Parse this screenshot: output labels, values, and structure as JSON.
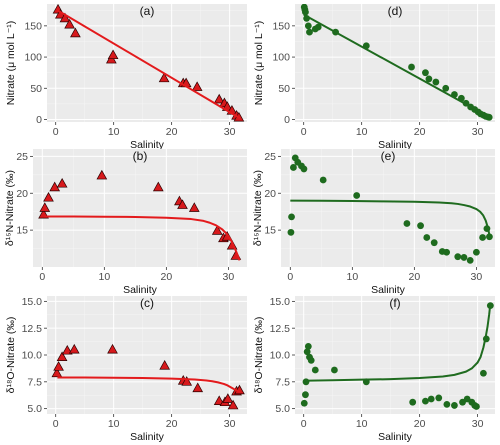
{
  "colors": {
    "red": "#e31a1c",
    "redMarker": "#d7191c",
    "green": "#1f6b1f",
    "greenMarker": "#1e6b1e"
  },
  "chart_data": [
    {
      "id": "a",
      "label": "(a)",
      "type": "scatter",
      "xlabel": "Salinity",
      "ylabel": "Nitrate (μ mol L⁻¹)",
      "xlim": [
        -1.5,
        33
      ],
      "ylim": [
        -4,
        185
      ],
      "xticks": [
        0,
        10,
        20,
        30
      ],
      "yticks": [
        0,
        50,
        100,
        150
      ],
      "xtick_labels": [
        "0",
        "10",
        "20",
        "30"
      ],
      "ytick_labels": [
        "0",
        "50",
        "100",
        "150"
      ],
      "marker": "triangle",
      "color": "red",
      "points": [
        [
          0.4,
          176
        ],
        [
          0.8,
          168
        ],
        [
          1.6,
          162
        ],
        [
          2.4,
          152
        ],
        [
          3.4,
          138
        ],
        [
          9.6,
          96
        ],
        [
          9.9,
          103
        ],
        [
          18.7,
          66
        ],
        [
          22.0,
          58
        ],
        [
          22.5,
          58
        ],
        [
          24.4,
          52
        ],
        [
          28.2,
          32
        ],
        [
          29.1,
          26
        ],
        [
          29.6,
          20
        ],
        [
          30.4,
          14
        ],
        [
          31.2,
          6
        ],
        [
          31.6,
          3
        ]
      ],
      "fit": {
        "kind": "linear",
        "x": [
          0.3,
          31.8
        ],
        "y": [
          175,
          2
        ]
      }
    },
    {
      "id": "d",
      "label": "(d)",
      "type": "scatter",
      "xlabel": "Salinity",
      "ylabel": "Nitrate (μ mol L⁻¹)",
      "xlim": [
        -1.5,
        33
      ],
      "ylim": [
        -4,
        185
      ],
      "xticks": [
        0,
        10,
        20,
        30
      ],
      "yticks": [
        0,
        50,
        100,
        150
      ],
      "xtick_labels": [
        "0",
        "10",
        "20",
        "30"
      ],
      "ytick_labels": [
        "0",
        "50",
        "100",
        "150"
      ],
      "marker": "circle",
      "color": "green",
      "points": [
        [
          0.1,
          180
        ],
        [
          0.2,
          176
        ],
        [
          0.3,
          172
        ],
        [
          0.5,
          162
        ],
        [
          0.8,
          150
        ],
        [
          1.0,
          140
        ],
        [
          2.0,
          145
        ],
        [
          2.5,
          148
        ],
        [
          5.5,
          140
        ],
        [
          10.8,
          118
        ],
        [
          18.6,
          84
        ],
        [
          21.0,
          75
        ],
        [
          21.6,
          65
        ],
        [
          22.8,
          60
        ],
        [
          24.5,
          50
        ],
        [
          26.0,
          40
        ],
        [
          27.2,
          34
        ],
        [
          28.0,
          26
        ],
        [
          28.8,
          20
        ],
        [
          29.5,
          16
        ],
        [
          30.1,
          12
        ],
        [
          30.5,
          9
        ],
        [
          31.0,
          7
        ],
        [
          31.4,
          5
        ],
        [
          31.8,
          4
        ],
        [
          32.0,
          3.5
        ]
      ],
      "fit": {
        "kind": "linear",
        "x": [
          0,
          32
        ],
        "y": [
          168,
          4
        ]
      }
    },
    {
      "id": "b",
      "label": "(b)",
      "type": "scatter",
      "xlabel": "Salinity",
      "ylabel": "δ¹⁵N-Nitrate (‰)",
      "xlim": [
        -1.5,
        33
      ],
      "ylim": [
        10,
        26
      ],
      "xticks": [
        0,
        10,
        20,
        30
      ],
      "yticks": [
        15,
        20,
        25
      ],
      "xtick_labels": [
        "0",
        "10",
        "20",
        "30"
      ],
      "ytick_labels": [
        "15",
        "20",
        "25"
      ],
      "marker": "triangle",
      "color": "red",
      "points": [
        [
          0.2,
          17.1
        ],
        [
          0.4,
          18.0
        ],
        [
          1.0,
          19.4
        ],
        [
          2.0,
          20.8
        ],
        [
          3.2,
          21.3
        ],
        [
          9.6,
          22.4
        ],
        [
          18.7,
          20.8
        ],
        [
          22.1,
          18.9
        ],
        [
          22.6,
          18.4
        ],
        [
          24.5,
          18.0
        ],
        [
          28.2,
          14.9
        ],
        [
          29.2,
          13.9
        ],
        [
          29.8,
          14.1
        ],
        [
          30.6,
          12.9
        ],
        [
          31.2,
          11.5
        ]
      ],
      "fit": {
        "kind": "curve",
        "x": [
          0.3,
          5,
          10,
          15,
          20,
          24,
          26,
          27,
          28,
          29,
          29.5,
          30,
          30.5,
          31,
          31.4,
          31.8
        ],
        "y": [
          16.85,
          16.85,
          16.82,
          16.78,
          16.68,
          16.5,
          16.25,
          16.0,
          15.65,
          15.1,
          14.7,
          14.2,
          13.5,
          12.6,
          11.8,
          10.9
        ]
      }
    },
    {
      "id": "e",
      "label": "(e)",
      "type": "scatter",
      "xlabel": "Salinity",
      "ylabel": "δ¹⁵N-Nitrate (‰)",
      "xlim": [
        -1.5,
        33
      ],
      "ylim": [
        10,
        26
      ],
      "xticks": [
        0,
        10,
        20,
        30
      ],
      "yticks": [
        15,
        20,
        25
      ],
      "xtick_labels": [
        "0",
        "10",
        "20",
        "30"
      ],
      "ytick_labels": [
        "15",
        "20",
        "25"
      ],
      "marker": "circle",
      "color": "green",
      "points": [
        [
          0.1,
          14.7
        ],
        [
          0.2,
          16.8
        ],
        [
          0.5,
          23.5
        ],
        [
          0.8,
          24.8
        ],
        [
          1.2,
          24.2
        ],
        [
          1.8,
          23.7
        ],
        [
          2.2,
          23.3
        ],
        [
          5.3,
          21.8
        ],
        [
          10.7,
          19.7
        ],
        [
          18.8,
          15.9
        ],
        [
          21.0,
          15.6
        ],
        [
          22.0,
          14.0
        ],
        [
          23.2,
          13.3
        ],
        [
          24.5,
          12.1
        ],
        [
          25.2,
          12.0
        ],
        [
          27.0,
          11.4
        ],
        [
          28.0,
          11.3
        ],
        [
          29.0,
          10.9
        ],
        [
          30.0,
          12.0
        ],
        [
          31.0,
          14.0
        ],
        [
          31.7,
          15.2
        ],
        [
          32.1,
          14.1
        ]
      ],
      "fit": {
        "kind": "curve",
        "x": [
          0,
          5,
          10,
          15,
          20,
          24,
          26,
          27,
          28,
          29,
          30,
          30.6,
          31.1,
          31.5,
          31.9,
          32.1
        ],
        "y": [
          19.0,
          18.98,
          18.95,
          18.9,
          18.85,
          18.75,
          18.65,
          18.55,
          18.4,
          18.2,
          17.85,
          17.5,
          17.0,
          16.3,
          15.2,
          14.3
        ]
      }
    },
    {
      "id": "c",
      "label": "(c)",
      "type": "scatter",
      "xlabel": "Salinity",
      "ylabel": "δ¹⁸O-Nitrate (‰)",
      "xlim": [
        -1.5,
        33
      ],
      "ylim": [
        4.5,
        15.5
      ],
      "xticks": [
        0,
        10,
        20,
        30
      ],
      "yticks": [
        5,
        7.5,
        10,
        12.5,
        15
      ],
      "xtick_labels": [
        "0",
        "10",
        "20",
        "30"
      ],
      "ytick_labels": [
        "5.0",
        "7.5",
        "10.0",
        "12.5",
        "15.0"
      ],
      "marker": "triangle",
      "color": "red",
      "points": [
        [
          0.2,
          8.3
        ],
        [
          0.5,
          8.9
        ],
        [
          1.1,
          9.8
        ],
        [
          2.0,
          10.4
        ],
        [
          3.2,
          10.5
        ],
        [
          9.8,
          10.5
        ],
        [
          18.8,
          9.0
        ],
        [
          22.0,
          7.6
        ],
        [
          22.6,
          7.5
        ],
        [
          24.5,
          6.9
        ],
        [
          28.2,
          5.7
        ],
        [
          29.2,
          5.6
        ],
        [
          29.7,
          5.9
        ],
        [
          30.6,
          5.3
        ],
        [
          31.2,
          6.6
        ],
        [
          31.7,
          6.7
        ]
      ],
      "fit": {
        "kind": "curve",
        "x": [
          0.3,
          5,
          10,
          15,
          20,
          24,
          26,
          27,
          28,
          29,
          29.5,
          30,
          30.5,
          31,
          31.5,
          31.8
        ],
        "y": [
          7.9,
          7.9,
          7.88,
          7.85,
          7.8,
          7.72,
          7.62,
          7.55,
          7.45,
          7.3,
          7.2,
          7.05,
          6.9,
          6.75,
          6.6,
          6.55
        ]
      }
    },
    {
      "id": "f",
      "label": "(f)",
      "type": "scatter",
      "xlabel": "Salinity",
      "ylabel": "δ¹⁸O-Nitrate (‰)",
      "xlim": [
        -1.5,
        33
      ],
      "ylim": [
        4.5,
        15.5
      ],
      "xticks": [
        0,
        10,
        20,
        30
      ],
      "yticks": [
        5,
        7.5,
        10,
        12.5,
        15
      ],
      "xtick_labels": [
        "0",
        "10",
        "20",
        "30"
      ],
      "ytick_labels": [
        "5.0",
        "7.5",
        "10.0",
        "12.5",
        "15.0"
      ],
      "marker": "circle",
      "color": "green",
      "points": [
        [
          0.1,
          5.5
        ],
        [
          0.3,
          6.3
        ],
        [
          0.4,
          7.5
        ],
        [
          0.6,
          10.3
        ],
        [
          0.8,
          10.8
        ],
        [
          1.0,
          9.8
        ],
        [
          1.3,
          9.5
        ],
        [
          2.0,
          8.6
        ],
        [
          5.3,
          8.6
        ],
        [
          10.8,
          7.5
        ],
        [
          18.8,
          5.6
        ],
        [
          21.0,
          5.7
        ],
        [
          22.0,
          5.9
        ],
        [
          23.3,
          6.0
        ],
        [
          24.7,
          5.4
        ],
        [
          26.0,
          5.3
        ],
        [
          27.4,
          5.6
        ],
        [
          28.2,
          5.9
        ],
        [
          29.0,
          5.6
        ],
        [
          29.5,
          5.3
        ],
        [
          29.8,
          5.2
        ],
        [
          31.0,
          8.3
        ],
        [
          31.5,
          11.5
        ],
        [
          32.2,
          14.6
        ]
      ],
      "fit": {
        "kind": "curve",
        "x": [
          0,
          5,
          10,
          15,
          20,
          24,
          26,
          28,
          29,
          30,
          30.5,
          31,
          31.4,
          31.7,
          32,
          32.2
        ],
        "y": [
          7.6,
          7.65,
          7.7,
          7.75,
          7.85,
          8.0,
          8.15,
          8.45,
          8.75,
          9.3,
          9.8,
          10.7,
          11.7,
          12.6,
          13.8,
          14.8
        ]
      }
    }
  ]
}
